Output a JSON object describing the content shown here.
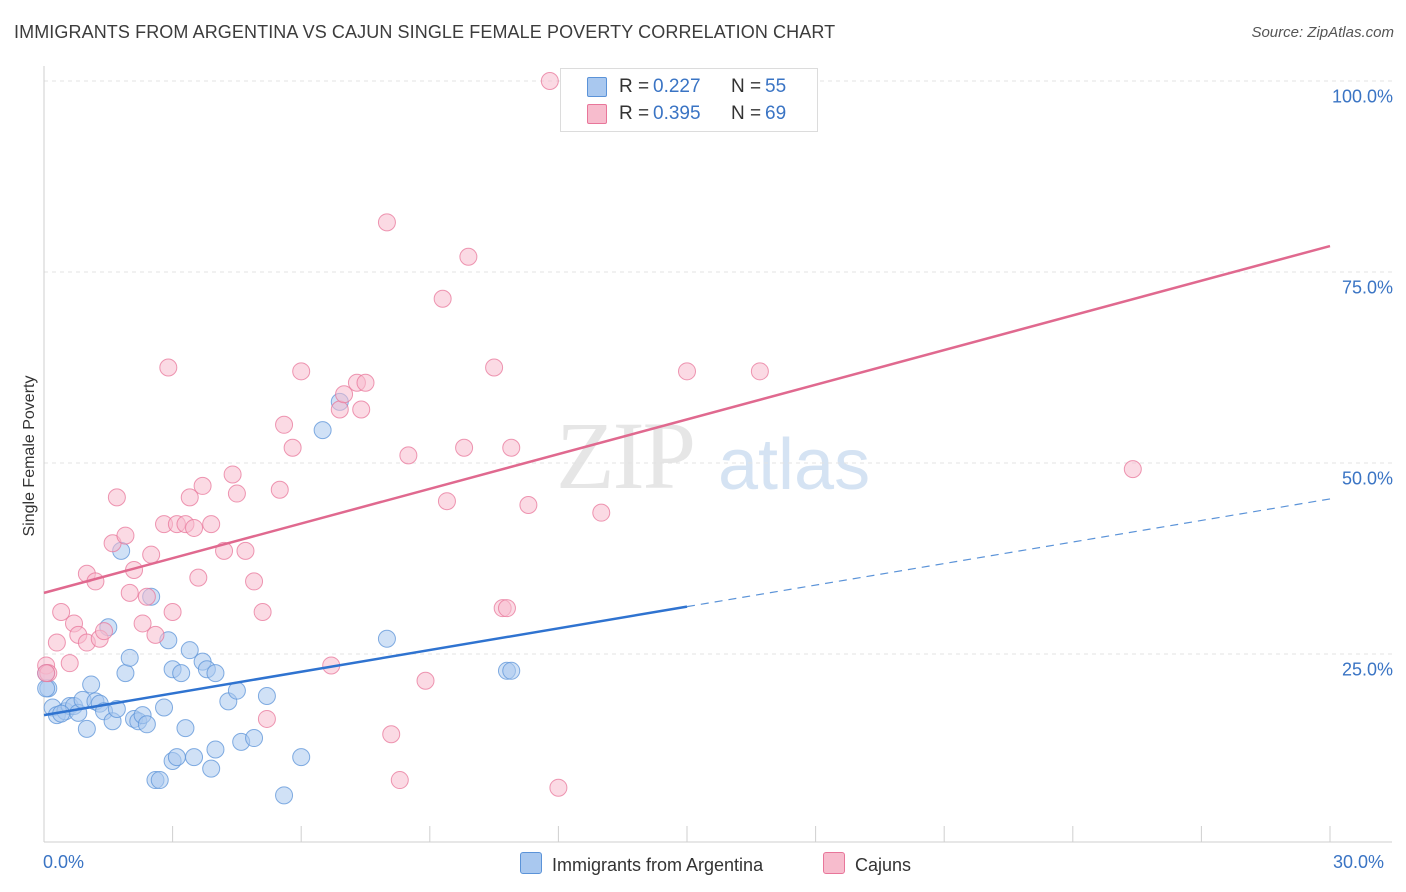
{
  "header": {
    "title": "IMMIGRANTS FROM ARGENTINA VS CAJUN SINGLE FEMALE POVERTY CORRELATION CHART",
    "source": "Source: ZipAtlas.com"
  },
  "watermark": {
    "zip": "ZIP",
    "atlas": "atlas"
  },
  "stats": [
    {
      "r_label": "R = ",
      "r_value": "0.227",
      "n_label": "N = ",
      "n_value": "55",
      "color": "#a9c8ef"
    },
    {
      "r_label": "R = ",
      "r_value": "0.395",
      "n_label": "N = ",
      "n_value": "69",
      "color": "#f7bccd"
    }
  ],
  "legend": [
    {
      "label": "Immigrants from Argentina",
      "color": "#a9c8ef"
    },
    {
      "label": "Cajuns",
      "color": "#f7bccd"
    }
  ],
  "chart_data": {
    "type": "scatter",
    "title": "IMMIGRANTS FROM ARGENTINA VS CAJUN SINGLE FEMALE POVERTY CORRELATION CHART",
    "xlabel": "",
    "ylabel": "Single Female Poverty",
    "xlim": [
      0,
      30
    ],
    "ylim": [
      0,
      100
    ],
    "x_tick_labels": [
      "0.0%",
      "30.0%"
    ],
    "y_tick_labels": [
      "100.0%",
      "75.0%",
      "50.0%",
      "25.0%"
    ],
    "y_ticks": [
      100,
      75,
      50,
      25
    ],
    "grid": true,
    "series": [
      {
        "name": "Immigrants from Argentina",
        "color": "#5b93d8",
        "fill": "#a9c8ef",
        "trend": {
          "x0": 0,
          "y0": 17.0,
          "x1": 15,
          "y1": 31.2,
          "dash_to_x": 30,
          "dash_to_y": 45.3
        },
        "points": [
          [
            0.05,
            22.5
          ],
          [
            0.1,
            20.5
          ],
          [
            0.2,
            18
          ],
          [
            0.3,
            17
          ],
          [
            0.5,
            17.5
          ],
          [
            0.6,
            18.2
          ],
          [
            0.7,
            18.2
          ],
          [
            0.8,
            17.3
          ],
          [
            0.9,
            19
          ],
          [
            1.0,
            15.2
          ],
          [
            1.1,
            21
          ],
          [
            1.2,
            18.8
          ],
          [
            1.3,
            18.5
          ],
          [
            1.4,
            17.5
          ],
          [
            1.5,
            28.5
          ],
          [
            1.6,
            16.2
          ],
          [
            1.7,
            17.8
          ],
          [
            1.8,
            38.5
          ],
          [
            1.9,
            22.5
          ],
          [
            2.0,
            24.5
          ],
          [
            2.1,
            16.5
          ],
          [
            2.2,
            16.2
          ],
          [
            2.3,
            17
          ],
          [
            2.4,
            15.8
          ],
          [
            2.5,
            32.5
          ],
          [
            2.6,
            8.5
          ],
          [
            2.7,
            8.5
          ],
          [
            2.8,
            18
          ],
          [
            2.9,
            26.8
          ],
          [
            3.0,
            11
          ],
          [
            3.1,
            11.5
          ],
          [
            3.0,
            23
          ],
          [
            3.2,
            22.5
          ],
          [
            3.3,
            15.3
          ],
          [
            3.4,
            25.5
          ],
          [
            3.5,
            11.5
          ],
          [
            3.7,
            24
          ],
          [
            3.8,
            23
          ],
          [
            3.9,
            10
          ],
          [
            4.0,
            22.5
          ],
          [
            4.0,
            12.5
          ],
          [
            4.3,
            18.8
          ],
          [
            4.5,
            20.2
          ],
          [
            4.6,
            13.5
          ],
          [
            4.9,
            14
          ],
          [
            5.2,
            19.5
          ],
          [
            5.6,
            6.5
          ],
          [
            6.0,
            11.5
          ],
          [
            6.5,
            54.3
          ],
          [
            6.9,
            58
          ],
          [
            8.0,
            27
          ],
          [
            10.8,
            22.8
          ],
          [
            10.9,
            22.8
          ],
          [
            0.05,
            20.5
          ],
          [
            0.4,
            17.2
          ]
        ]
      },
      {
        "name": "Cajuns",
        "color": "#e8769a",
        "fill": "#f7bccd",
        "trend": {
          "x0": 0,
          "y0": 33.0,
          "x1": 30,
          "y1": 78.4
        },
        "points": [
          [
            0.05,
            23.5
          ],
          [
            0.1,
            22.5
          ],
          [
            0.3,
            26.5
          ],
          [
            0.4,
            30.5
          ],
          [
            0.6,
            23.8
          ],
          [
            0.7,
            29
          ],
          [
            0.8,
            27.5
          ],
          [
            1.0,
            35.5
          ],
          [
            1.0,
            26.5
          ],
          [
            1.2,
            34.5
          ],
          [
            1.3,
            27
          ],
          [
            1.4,
            28
          ],
          [
            1.6,
            39.5
          ],
          [
            1.7,
            45.5
          ],
          [
            1.9,
            40.5
          ],
          [
            2.0,
            33
          ],
          [
            2.1,
            36
          ],
          [
            2.3,
            29
          ],
          [
            2.4,
            32.5
          ],
          [
            2.5,
            38
          ],
          [
            2.6,
            27.5
          ],
          [
            2.8,
            42
          ],
          [
            2.9,
            62.5
          ],
          [
            3.0,
            30.5
          ],
          [
            3.1,
            42
          ],
          [
            3.3,
            42
          ],
          [
            3.4,
            45.5
          ],
          [
            3.5,
            41.5
          ],
          [
            3.6,
            35
          ],
          [
            3.7,
            47
          ],
          [
            3.9,
            42
          ],
          [
            4.2,
            38.5
          ],
          [
            4.4,
            48.5
          ],
          [
            4.5,
            46
          ],
          [
            4.7,
            38.5
          ],
          [
            4.9,
            34.5
          ],
          [
            5.1,
            30.5
          ],
          [
            5.2,
            16.5
          ],
          [
            5.5,
            46.5
          ],
          [
            5.6,
            55
          ],
          [
            5.8,
            52
          ],
          [
            6.0,
            62
          ],
          [
            6.7,
            23.5
          ],
          [
            6.9,
            57
          ],
          [
            7.0,
            59
          ],
          [
            7.3,
            60.5
          ],
          [
            7.4,
            57
          ],
          [
            7.5,
            60.5
          ],
          [
            8.0,
            81.5
          ],
          [
            8.1,
            14.5
          ],
          [
            8.3,
            8.5
          ],
          [
            8.5,
            51
          ],
          [
            8.9,
            21.5
          ],
          [
            9.3,
            71.5
          ],
          [
            9.4,
            45
          ],
          [
            9.8,
            52
          ],
          [
            9.9,
            77
          ],
          [
            10.5,
            62.5
          ],
          [
            10.7,
            31
          ],
          [
            10.8,
            31
          ],
          [
            10.9,
            52
          ],
          [
            11.3,
            44.5
          ],
          [
            11.8,
            100
          ],
          [
            12.0,
            7.5
          ],
          [
            13.0,
            43.5
          ],
          [
            15.0,
            62
          ],
          [
            16.7,
            62
          ],
          [
            25.4,
            49.2
          ],
          [
            0.05,
            22.5
          ]
        ]
      }
    ]
  }
}
